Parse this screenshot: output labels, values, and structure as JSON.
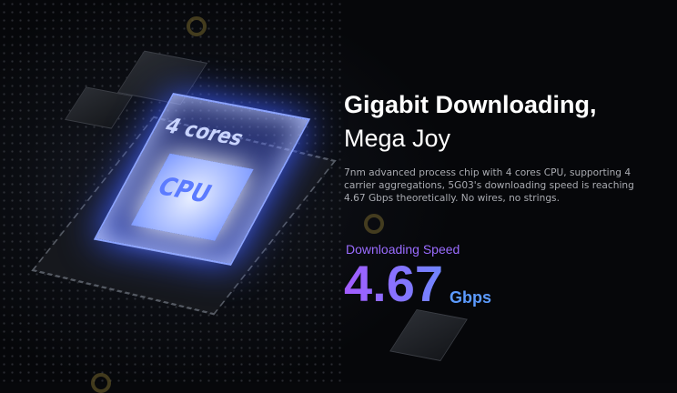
{
  "hero": {
    "title_line1": "Gigabit Downloading,",
    "title_line2": "Mega Joy",
    "description": "7nm advanced process chip with 4 cores CPU, supporting 4 carrier aggregations, 5G03's downloading speed is reaching 4.67 Gbps theoretically. No wires, no strings.",
    "metric_label": "Downloading Speed",
    "metric_value": "4.67",
    "metric_unit": "Gbps"
  },
  "illustration": {
    "cube_text_top": "4 cores",
    "cube_text_main": "CPU"
  },
  "colors": {
    "metric_gradient_start": "#a35cff",
    "metric_gradient_end": "#6f86ff",
    "unit": "#5c9bff",
    "label": "#9a6cff"
  }
}
